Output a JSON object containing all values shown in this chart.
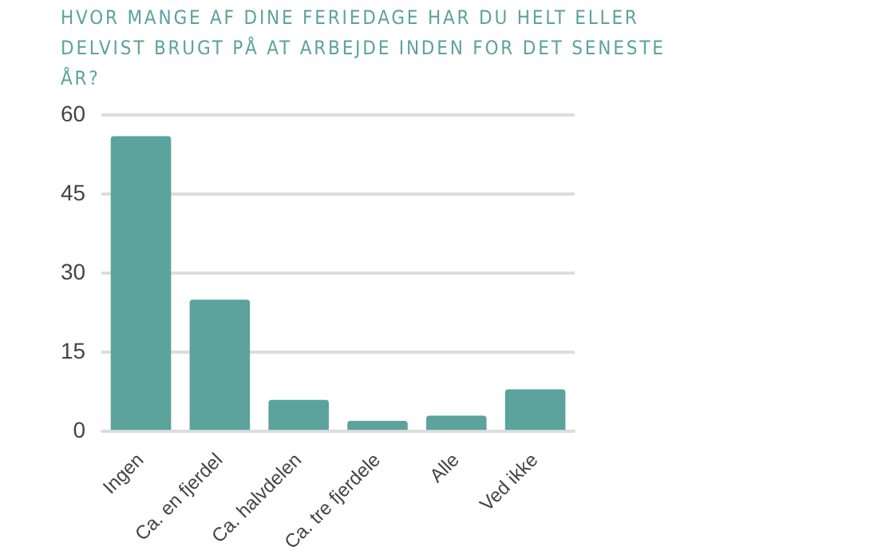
{
  "chart_data": {
    "type": "bar",
    "title": "HVOR MANGE AF DINE FERIEDAGE HAR DU HELT ELLER DELVIST BRUGT PÅ AT ARBEJDE INDEN FOR DET SENESTE ÅR?",
    "categories": [
      "Ingen",
      "Ca. en fjerdel",
      "Ca. halvdelen",
      "Ca. tre fjerdele",
      "Alle",
      "Ved ikke"
    ],
    "values": [
      56,
      25,
      6,
      2,
      3,
      8
    ],
    "color": "#5ba39c",
    "ylim": [
      0,
      60
    ],
    "yticks": [
      0,
      15,
      30,
      45,
      60
    ],
    "grid": "y"
  }
}
